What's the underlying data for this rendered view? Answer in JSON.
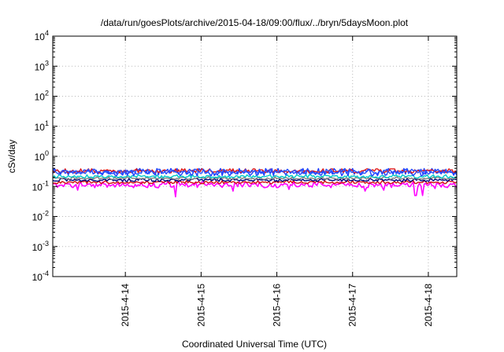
{
  "chart_data": {
    "type": "line",
    "title": "/data/run/goesPlots/archive/2015-04-18/09:00/flux/../bryn/5daysMoon.plot",
    "ylabel": "cSv/day",
    "xlabel": "Coordinated Universal Time (UTC)",
    "yscale": "log",
    "ylim": [
      0.0001,
      10000
    ],
    "yticks": [
      {
        "base": "10",
        "exp": "-4",
        "value": 0.0001
      },
      {
        "base": "10",
        "exp": "-3",
        "value": 0.001
      },
      {
        "base": "10",
        "exp": "-2",
        "value": 0.01
      },
      {
        "base": "10",
        "exp": "-1",
        "value": 0.1
      },
      {
        "base": "10",
        "exp": "0",
        "value": 1
      },
      {
        "base": "10",
        "exp": "1",
        "value": 10
      },
      {
        "base": "10",
        "exp": "2",
        "value": 100
      },
      {
        "base": "10",
        "exp": "3",
        "value": 1000
      },
      {
        "base": "10",
        "exp": "4",
        "value": 10000
      }
    ],
    "xlim": [
      "2015-04-13 01:00",
      "2015-04-18 09:00"
    ],
    "xticks": [
      "2015-4-14",
      "2015-4-15",
      "2015-4-16",
      "2015-4-17",
      "2015-4-18"
    ],
    "grid": true,
    "legend": "none",
    "series": [
      {
        "color": "#ff00ff",
        "base": 0.11,
        "spread": 0.35,
        "spikes": [
          [
            "2015-04-13 09:00",
            0.075
          ],
          [
            "2015-04-14 16:00",
            0.045
          ],
          [
            "2015-04-15 10:00",
            0.07
          ],
          [
            "2015-04-16 04:00",
            0.08
          ],
          [
            "2015-04-17 04:00",
            0.07
          ],
          [
            "2015-04-17 10:00",
            0.075
          ],
          [
            "2015-04-17 20:00",
            0.05
          ],
          [
            "2015-04-17 22:00",
            0.05
          ],
          [
            "2015-04-18 02:00",
            0.085
          ]
        ]
      },
      {
        "color": "#d01010",
        "base": 0.135,
        "spread": 0.18,
        "spikes": []
      },
      {
        "color": "#000080",
        "base": 0.16,
        "spread": 0.18,
        "spikes": []
      },
      {
        "color": "#808080",
        "base": 0.185,
        "spread": 0.15,
        "spikes": []
      },
      {
        "color": "#00c8c8",
        "base": 0.21,
        "spread": 0.2,
        "spikes": []
      },
      {
        "color": "#1e3cff",
        "base": 0.29,
        "spread": 0.45,
        "spikes": []
      },
      {
        "color": "#e01a1a",
        "base": 0.32,
        "spread": 0.25,
        "spikes": []
      },
      {
        "color": "#2850ff",
        "base": 0.3,
        "spread": 0.3,
        "spikes": []
      }
    ]
  }
}
